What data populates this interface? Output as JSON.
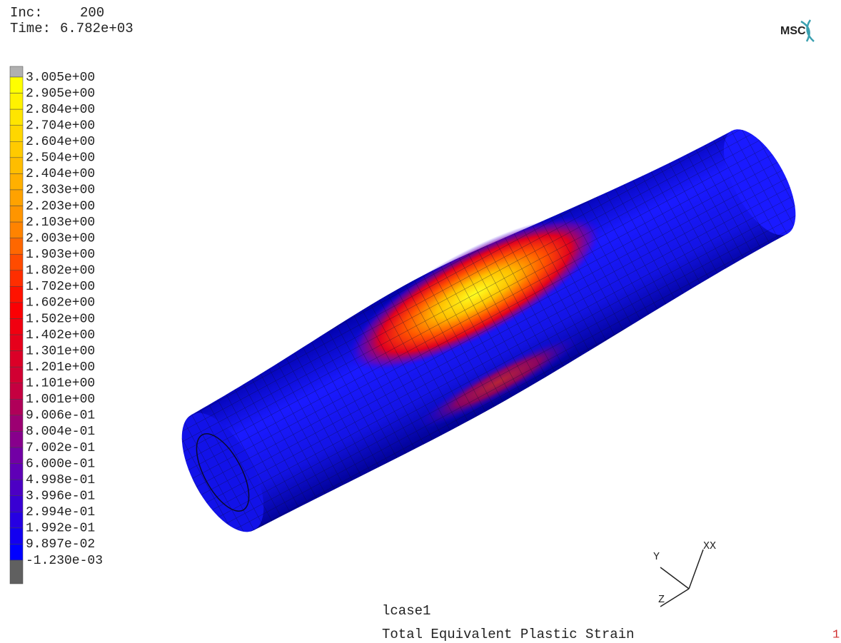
{
  "header": {
    "inc_label": "Inc:",
    "inc": 200,
    "time_label": "Time:",
    "time": "6.782e+03"
  },
  "logo": "MSC",
  "legend": {
    "labels": [
      "3.005e+00",
      "2.905e+00",
      "2.804e+00",
      "2.704e+00",
      "2.604e+00",
      "2.504e+00",
      "2.404e+00",
      "2.303e+00",
      "2.203e+00",
      "2.103e+00",
      "2.003e+00",
      "1.903e+00",
      "1.802e+00",
      "1.702e+00",
      "1.602e+00",
      "1.502e+00",
      "1.402e+00",
      "1.301e+00",
      "1.201e+00",
      "1.101e+00",
      "1.001e+00",
      "9.006e-01",
      "8.004e-01",
      "7.002e-01",
      "6.000e-01",
      "4.998e-01",
      "3.996e-01",
      "2.994e-01",
      "1.992e-01",
      "9.897e-02",
      "-1.230e-03"
    ]
  },
  "triad": {
    "y": "Y",
    "x": "XX",
    "z": "Z"
  },
  "footer": {
    "load_case": "lcase1",
    "result": "Total Equivalent Plastic Strain",
    "index": 1
  }
}
